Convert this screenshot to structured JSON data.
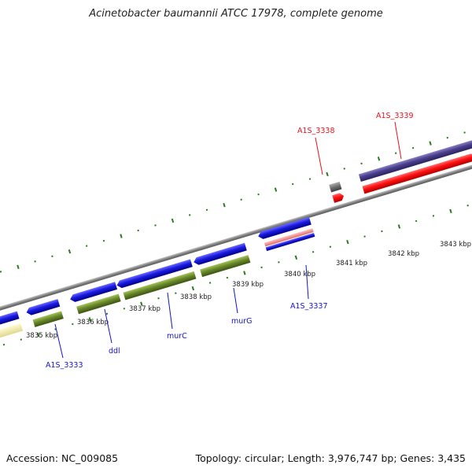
{
  "title": "Acinetobacter baumannii ATCC 17978, complete genome",
  "footer": {
    "accession": "Accession: NC_009085",
    "summary": "Topology: circular; Length: 3,976,747 bp; Genes: 3,435"
  },
  "colors": {
    "forward_cds": "#e8131c",
    "reverse_cds": "#1414c8",
    "forward_gene": "#4a3f8c",
    "reverse_gene": "#5a7a22",
    "pseudo": "#f2eeaa",
    "other": "#6e6e6e",
    "ticks": "#2a7a1e",
    "backbone": "#8a8a8a"
  },
  "ticks": [
    "3835 kbp",
    "3836 kbp",
    "3837 kbp",
    "3838 kbp",
    "3839 kbp",
    "3840 kbp",
    "3841 kbp",
    "3842 kbp",
    "3843 kbp"
  ],
  "gene_labels": [
    {
      "name": "A1S_3333",
      "color": "#1414c8"
    },
    {
      "name": "ddl",
      "color": "#1414c8"
    },
    {
      "name": "murC",
      "color": "#1414c8"
    },
    {
      "name": "murG",
      "color": "#1414c8"
    },
    {
      "name": "A1S_3337",
      "color": "#1414c8"
    },
    {
      "name": "A1S_3338",
      "color": "#e8131c"
    },
    {
      "name": "A1S_3339",
      "color": "#e8131c"
    }
  ]
}
